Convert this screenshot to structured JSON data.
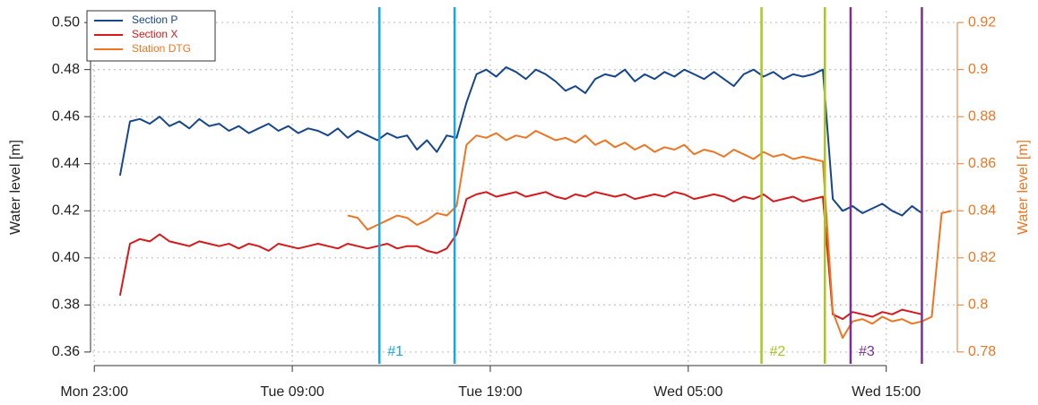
{
  "chart_data": {
    "type": "line",
    "y_label": "Water level [m]",
    "y2_label": "Water level [m]",
    "y2_color": "#ee7623",
    "xlim": [
      22.9,
      66.5
    ],
    "xticks": [
      {
        "value": 23,
        "label": "Mon 23:00"
      },
      {
        "value": 33,
        "label": "Tue 09:00"
      },
      {
        "value": 43,
        "label": "Tue 19:00"
      },
      {
        "value": 53,
        "label": "Wed 05:00"
      },
      {
        "value": 63,
        "label": "Wed 15:00"
      }
    ],
    "ylim": [
      0.355,
      0.505
    ],
    "yticks": [
      0.36,
      0.38,
      {
        "value": 0.4,
        "label": "0.40"
      },
      0.42,
      0.44,
      0.46,
      0.48,
      {
        "value": 0.5,
        "label": "0.50"
      }
    ],
    "y2lim": [
      0.775,
      0.925
    ],
    "y2ticks": [
      0.78,
      0.8,
      0.82,
      0.84,
      0.86,
      0.88,
      0.9,
      0.92
    ],
    "grid": true,
    "legend": "top-left",
    "x": [
      24.3,
      24.8,
      25.3,
      25.8,
      26.3,
      26.8,
      27.3,
      27.8,
      28.3,
      28.8,
      29.3,
      29.8,
      30.3,
      30.8,
      31.3,
      31.8,
      32.3,
      32.8,
      33.3,
      33.8,
      34.3,
      34.8,
      35.3,
      35.8,
      36.3,
      36.8,
      37.3,
      37.8,
      38.3,
      38.8,
      39.3,
      39.8,
      40.3,
      40.8,
      41.3,
      41.8,
      42.3,
      42.8,
      43.3,
      43.8,
      44.3,
      44.8,
      45.3,
      45.8,
      46.3,
      46.8,
      47.3,
      47.8,
      48.3,
      48.8,
      49.3,
      49.8,
      50.3,
      50.8,
      51.3,
      51.8,
      52.3,
      52.8,
      53.3,
      53.8,
      54.3,
      54.8,
      55.3,
      55.8,
      56.3,
      56.8,
      57.3,
      57.8,
      58.3,
      58.8,
      59.3,
      59.8,
      60.3,
      60.8,
      61.3,
      61.8,
      62.3,
      62.8,
      63.3,
      63.8,
      64.3,
      64.8,
      65.3,
      65.8,
      66.3
    ],
    "series": [
      {
        "name": "Section P",
        "color": "#16468c",
        "values": [
          0.435,
          0.458,
          0.459,
          0.457,
          0.46,
          0.456,
          0.458,
          0.455,
          0.459,
          0.456,
          0.457,
          0.454,
          0.456,
          0.453,
          0.455,
          0.457,
          0.454,
          0.456,
          0.453,
          0.455,
          0.454,
          0.452,
          0.455,
          0.451,
          0.454,
          0.452,
          0.45,
          0.453,
          0.451,
          0.452,
          0.446,
          0.45,
          0.445,
          0.452,
          0.451,
          0.466,
          0.478,
          0.48,
          0.477,
          0.481,
          0.479,
          0.476,
          0.48,
          0.478,
          0.475,
          0.471,
          0.473,
          0.47,
          0.476,
          0.478,
          0.477,
          0.48,
          0.475,
          0.478,
          0.476,
          0.479,
          0.477,
          0.48,
          0.478,
          0.476,
          0.479,
          0.476,
          0.473,
          0.478,
          0.48,
          0.477,
          0.479,
          0.476,
          0.478,
          0.477,
          0.478,
          0.48,
          0.425,
          0.42,
          0.422,
          0.419,
          0.421,
          0.423,
          0.42,
          0.418,
          0.422,
          0.419,
          null,
          null,
          null
        ]
      },
      {
        "name": "Section X",
        "color": "#d7191c",
        "values": [
          0.384,
          0.406,
          0.408,
          0.407,
          0.41,
          0.407,
          0.406,
          0.405,
          0.407,
          0.406,
          0.405,
          0.406,
          0.404,
          0.406,
          0.405,
          0.403,
          0.406,
          0.405,
          0.404,
          0.405,
          0.406,
          0.405,
          0.404,
          0.406,
          0.405,
          0.404,
          0.405,
          0.406,
          0.404,
          0.405,
          0.405,
          0.403,
          0.402,
          0.404,
          0.41,
          0.425,
          0.427,
          0.428,
          0.426,
          0.427,
          0.428,
          0.426,
          0.427,
          0.428,
          0.426,
          0.425,
          0.427,
          0.426,
          0.428,
          0.427,
          0.426,
          0.427,
          0.425,
          0.426,
          0.427,
          0.426,
          0.428,
          0.427,
          0.425,
          0.426,
          0.427,
          0.426,
          0.424,
          0.426,
          0.425,
          0.427,
          0.424,
          0.425,
          0.426,
          0.424,
          0.425,
          0.426,
          0.376,
          0.374,
          0.377,
          0.376,
          0.375,
          0.377,
          0.376,
          0.378,
          0.377,
          0.376,
          null,
          null,
          null
        ]
      },
      {
        "name": "Station DTG",
        "color": "#ee7623",
        "axis": "y2",
        "values": [
          null,
          null,
          null,
          null,
          null,
          null,
          null,
          null,
          null,
          null,
          null,
          null,
          null,
          null,
          null,
          null,
          null,
          null,
          null,
          null,
          null,
          null,
          null,
          0.838,
          0.837,
          0.832,
          0.834,
          0.836,
          0.838,
          0.837,
          0.834,
          0.836,
          0.839,
          0.838,
          0.842,
          0.868,
          0.872,
          0.871,
          0.873,
          0.87,
          0.872,
          0.871,
          0.874,
          0.872,
          0.87,
          0.871,
          0.869,
          0.872,
          0.868,
          0.87,
          0.867,
          0.869,
          0.866,
          0.868,
          0.865,
          0.867,
          0.866,
          0.868,
          0.864,
          0.866,
          0.865,
          0.863,
          0.866,
          0.864,
          0.862,
          0.865,
          0.863,
          0.864,
          0.862,
          0.863,
          0.862,
          0.861,
          0.797,
          0.786,
          0.793,
          0.794,
          0.792,
          0.795,
          0.793,
          0.794,
          0.792,
          0.793,
          0.795,
          0.839,
          0.84
        ]
      }
    ],
    "markers": [
      {
        "label": "#1",
        "color": "#1aa7df",
        "x": [
          37.4,
          41.2
        ]
      },
      {
        "label": "#2",
        "color": "#a5c91c",
        "x": [
          56.7,
          59.9
        ]
      },
      {
        "label": "#3",
        "color": "#7b2f96",
        "x": [
          61.2,
          64.8
        ]
      }
    ]
  }
}
